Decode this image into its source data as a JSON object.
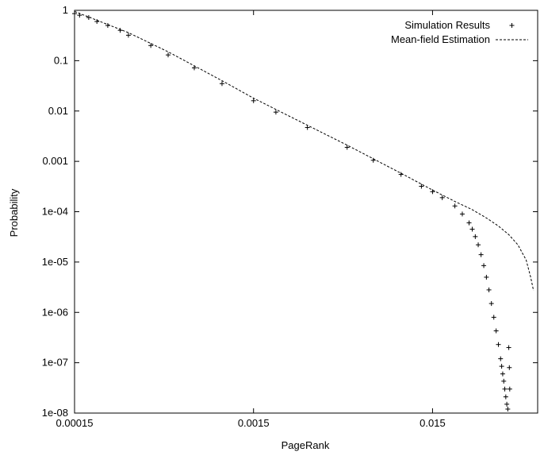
{
  "chart_data": {
    "type": "scatter",
    "xlabel": "PageRank",
    "ylabel": "Probability",
    "x_scale": "log",
    "y_scale": "log",
    "xlim": [
      0.00015,
      0.058
    ],
    "ylim": [
      1e-08,
      1
    ],
    "x_ticks": [
      {
        "value": 0.00015,
        "label": "0.00015"
      },
      {
        "value": 0.0015,
        "label": "0.0015"
      },
      {
        "value": 0.015,
        "label": "0.015"
      }
    ],
    "y_ticks": [
      {
        "value": 1,
        "label": "1"
      },
      {
        "value": 0.1,
        "label": "0.1"
      },
      {
        "value": 0.01,
        "label": "0.01"
      },
      {
        "value": 0.001,
        "label": "0.001"
      },
      {
        "value": 0.0001,
        "label": "1e-04"
      },
      {
        "value": 1e-05,
        "label": "1e-05"
      },
      {
        "value": 1e-06,
        "label": "1e-06"
      },
      {
        "value": 1e-07,
        "label": "1e-07"
      },
      {
        "value": 1e-08,
        "label": "1e-08"
      }
    ],
    "grid": false,
    "legend_position": "top-right",
    "series": [
      {
        "name": "Simulation Results",
        "style": "points-plus",
        "color": "#000000",
        "x": [
          0.00015,
          0.00016,
          0.00018,
          0.0002,
          0.00023,
          0.00027,
          0.0003,
          0.0004,
          0.0005,
          0.0007,
          0.001,
          0.0015,
          0.002,
          0.003,
          0.005,
          0.007,
          0.01,
          0.013,
          0.015,
          0.017,
          0.02,
          0.022,
          0.024,
          0.025,
          0.026,
          0.027,
          0.028,
          0.029,
          0.03,
          0.031,
          0.032,
          0.033,
          0.034,
          0.035,
          0.036,
          0.0365,
          0.037,
          0.0375,
          0.038,
          0.0385,
          0.039,
          0.0395,
          0.04,
          0.0403,
          0.0405
        ],
        "y": [
          0.86,
          0.8,
          0.72,
          0.6,
          0.5,
          0.4,
          0.32,
          0.2,
          0.13,
          0.072,
          0.035,
          0.016,
          0.0095,
          0.0047,
          0.0019,
          0.00105,
          0.00055,
          0.00032,
          0.00025,
          0.00019,
          0.00013,
          9e-05,
          6e-05,
          4.5e-05,
          3.2e-05,
          2.2e-05,
          1.4e-05,
          8.5e-06,
          5e-06,
          2.8e-06,
          1.5e-06,
          8e-07,
          4.3e-07,
          2.3e-07,
          1.2e-07,
          8.5e-08,
          6e-08,
          4.3e-08,
          3e-08,
          2.1e-08,
          1.5e-08,
          1.2e-08,
          2e-07,
          8e-08,
          3e-08
        ]
      },
      {
        "name": "Mean-field Estimation",
        "style": "dashed-line",
        "color": "#000000",
        "x": [
          0.00015,
          0.0003,
          0.0005,
          0.001,
          0.0015,
          0.003,
          0.005,
          0.01,
          0.015,
          0.02,
          0.025,
          0.03,
          0.035,
          0.04,
          0.045,
          0.05,
          0.053,
          0.055
        ],
        "y": [
          0.95,
          0.36,
          0.15,
          0.04,
          0.018,
          0.0052,
          0.0021,
          0.00058,
          0.00027,
          0.00016,
          0.00011,
          7.5e-05,
          5.2e-05,
          3.5e-05,
          2.2e-05,
          1.1e-05,
          5e-06,
          2.7e-06
        ]
      }
    ]
  }
}
